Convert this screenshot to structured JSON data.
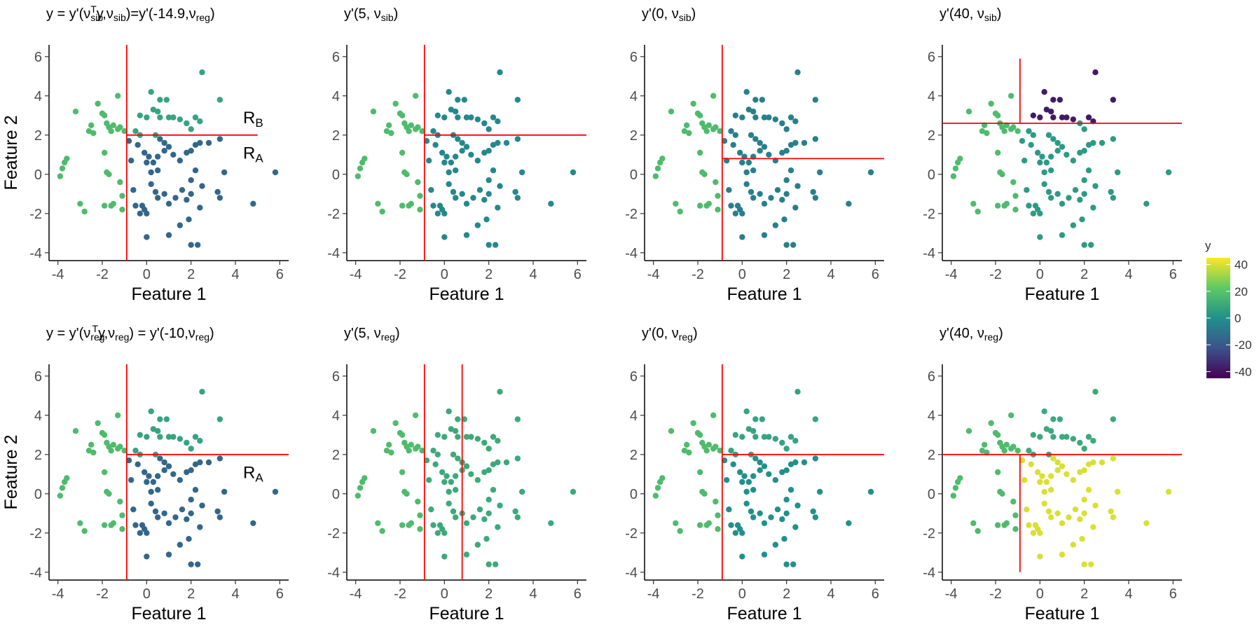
{
  "chart_data": {
    "type": "scatter",
    "xlabel": "Feature 1",
    "ylabel": "Feature 2",
    "xlim": [
      -4.4,
      6.4
    ],
    "ylim": [
      -4.4,
      6.6
    ],
    "xticks": [
      "-4",
      "-2",
      "0",
      "2",
      "4",
      "6"
    ],
    "yticks": [
      "-4",
      "-2",
      "0",
      "2",
      "4",
      "6"
    ],
    "points": [
      [
        -3.9,
        -0.1
      ],
      [
        -3.8,
        0.3
      ],
      [
        -3.7,
        0.6
      ],
      [
        -3.6,
        0.8
      ],
      [
        -3.2,
        3.2
      ],
      [
        -3.0,
        -1.5
      ],
      [
        -2.8,
        -1.9
      ],
      [
        -2.6,
        2.2
      ],
      [
        -2.5,
        2.5
      ],
      [
        -2.4,
        2.1
      ],
      [
        -2.2,
        3.6
      ],
      [
        -2.0,
        3.1
      ],
      [
        -1.9,
        3.0
      ],
      [
        -1.8,
        2.6
      ],
      [
        -1.7,
        2.4
      ],
      [
        -1.6,
        2.2
      ],
      [
        -1.9,
        1.1
      ],
      [
        -1.8,
        0.1
      ],
      [
        -1.7,
        0.0
      ],
      [
        -1.6,
        -1.6
      ],
      [
        -1.5,
        -1.5
      ],
      [
        -1.9,
        -1.6
      ],
      [
        -1.2,
        -0.4
      ],
      [
        -1.1,
        -1.1
      ],
      [
        -1.1,
        -1.8
      ],
      [
        -1.3,
        4.0
      ],
      [
        -1.5,
        2.5
      ],
      [
        -1.3,
        2.3
      ],
      [
        -1.0,
        2.2
      ],
      [
        -1.2,
        2.4
      ],
      [
        -0.8,
        1.7
      ],
      [
        -0.7,
        0.7
      ],
      [
        -0.6,
        -0.8
      ],
      [
        -0.5,
        2.2
      ],
      [
        -0.4,
        1.5
      ],
      [
        -0.3,
        2.0
      ],
      [
        -0.1,
        1.1
      ],
      [
        0.0,
        0.6
      ],
      [
        0.1,
        0.9
      ],
      [
        0.2,
        0.1
      ],
      [
        -0.3,
        3.0
      ],
      [
        0.0,
        2.9
      ],
      [
        0.3,
        3.3
      ],
      [
        0.5,
        3.2
      ],
      [
        0.2,
        4.2
      ],
      [
        0.6,
        3.8
      ],
      [
        0.9,
        3.8
      ],
      [
        0.6,
        2.9
      ],
      [
        1.0,
        2.9
      ],
      [
        1.2,
        2.9
      ],
      [
        1.5,
        2.8
      ],
      [
        1.8,
        2.6
      ],
      [
        2.0,
        2.3
      ],
      [
        2.2,
        2.9
      ],
      [
        2.4,
        2.7
      ],
      [
        2.5,
        5.2
      ],
      [
        3.3,
        3.8
      ],
      [
        0.4,
        2.0
      ],
      [
        0.6,
        1.8
      ],
      [
        0.8,
        1.6
      ],
      [
        1.0,
        1.4
      ],
      [
        1.2,
        1.0
      ],
      [
        0.8,
        1.2
      ],
      [
        0.5,
        0.9
      ],
      [
        0.3,
        0.6
      ],
      [
        0.5,
        0.2
      ],
      [
        0.2,
        -0.5
      ],
      [
        0.4,
        -0.9
      ],
      [
        -0.2,
        -1.6
      ],
      [
        -0.5,
        -1.6
      ],
      [
        -0.1,
        -1.8
      ],
      [
        0.0,
        -2.0
      ],
      [
        -0.3,
        -2.0
      ],
      [
        0.5,
        -1.2
      ],
      [
        0.8,
        -1.0
      ],
      [
        1.0,
        -1.5
      ],
      [
        1.3,
        -1.2
      ],
      [
        1.6,
        -0.8
      ],
      [
        1.8,
        -1.3
      ],
      [
        2.0,
        -0.3
      ],
      [
        2.2,
        0.2
      ],
      [
        1.5,
        0.7
      ],
      [
        1.8,
        1.1
      ],
      [
        2.0,
        1.2
      ],
      [
        2.2,
        1.5
      ],
      [
        2.4,
        1.6
      ],
      [
        2.8,
        1.6
      ],
      [
        3.3,
        1.8
      ],
      [
        2.5,
        -0.6
      ],
      [
        2.0,
        -1.0
      ],
      [
        2.4,
        -1.7
      ],
      [
        1.9,
        -2.3
      ],
      [
        1.5,
        -2.6
      ],
      [
        1.0,
        -3.1
      ],
      [
        0.0,
        -3.2
      ],
      [
        2.0,
        -3.6
      ],
      [
        2.3,
        -3.6
      ],
      [
        3.2,
        -0.9
      ],
      [
        3.3,
        -1.2
      ],
      [
        3.5,
        0.1
      ],
      [
        4.8,
        -1.5
      ],
      [
        5.8,
        0.1
      ]
    ],
    "panels": [
      {
        "title": "y = y'(ν_sib^T y, ν_sib) = y'(-14.9, ν_reg)",
        "title_parts": {
          "main": "y = y'(ν",
          "sub1": "sib",
          "sup1": "T",
          "mid": "y,ν",
          "sub2": "sib",
          "mid2": ")=y'(-14.9,ν",
          "sub3": "reg",
          "end": ")"
        },
        "region_labels": [
          {
            "text": "R",
            "sub": "B",
            "x": 4.8,
            "y": 2.6
          },
          {
            "text": "R",
            "sub": "A",
            "x": 4.8,
            "y": 0.8
          }
        ],
        "splits": [
          {
            "orient": "v",
            "at": -0.9,
            "from": -4.4,
            "to": 6.6
          },
          {
            "orient": "h",
            "at": 2.0,
            "from": -0.9,
            "to": 5.0
          }
        ],
        "rule": "reg-sib",
        "values": {
          "left": 17,
          "a": -15,
          "b": 8
        }
      },
      {
        "title": "y'(5, ν_sib)",
        "title_parts": {
          "main": "y'(5, ν",
          "sub1": "sib",
          "end": ")"
        },
        "splits": [
          {
            "orient": "v",
            "at": -0.9,
            "from": -4.4,
            "to": 6.6
          },
          {
            "orient": "h",
            "at": 2.0,
            "from": -0.9,
            "to": 6.4
          }
        ],
        "rule": "left-else",
        "values": {
          "left": 17,
          "a": -3,
          "b": -3
        }
      },
      {
        "title": "y'(0, ν_sib)",
        "title_parts": {
          "main": "y'(0, ν",
          "sub1": "sib",
          "end": ")"
        },
        "splits": [
          {
            "orient": "v",
            "at": -0.9,
            "from": -4.4,
            "to": 6.6
          },
          {
            "orient": "h",
            "at": 0.8,
            "from": -0.9,
            "to": 6.4
          }
        ],
        "rule": "left-else",
        "values": {
          "left": 17,
          "a": -6,
          "b": -6
        }
      },
      {
        "title": "y'(40, ν_sib)",
        "title_parts": {
          "main": "y'(40, ν",
          "sub1": "sib",
          "end": ")"
        },
        "splits": [
          {
            "orient": "h",
            "at": 2.6,
            "from": -4.4,
            "to": 6.4
          },
          {
            "orient": "v",
            "at": -0.9,
            "from": 2.6,
            "to": 5.9
          }
        ],
        "rule": "sib40",
        "values": {
          "left": 17,
          "a": 4,
          "b": -38
        }
      },
      {
        "title": "y = y'(ν_reg^T y, ν_reg) = y'(-10, ν_reg)",
        "title_parts": {
          "main": "y = y'(ν",
          "sub1": "reg",
          "sup1": "T",
          "mid": "y,ν",
          "sub2": "reg",
          "mid2": ") = y'(-10,ν",
          "sub3": "reg",
          "end": ")"
        },
        "region_labels": [
          {
            "text": "R",
            "sub": "A",
            "x": 4.8,
            "y": 0.8
          }
        ],
        "splits": [
          {
            "orient": "v",
            "at": -0.9,
            "from": -4.4,
            "to": 6.6
          },
          {
            "orient": "h",
            "at": 2.0,
            "from": -0.9,
            "to": 6.4
          }
        ],
        "rule": "reg-sib",
        "values": {
          "left": 17,
          "a": -15,
          "b": 8
        }
      },
      {
        "title": "y'(5, ν_reg)",
        "title_parts": {
          "main": "y'(5, ν",
          "sub1": "reg",
          "end": ")"
        },
        "splits": [
          {
            "orient": "v",
            "at": -0.9,
            "from": -4.4,
            "to": 6.6
          },
          {
            "orient": "v",
            "at": 0.8,
            "from": -4.4,
            "to": 6.6
          }
        ],
        "rule": "left-else",
        "values": {
          "left": 17,
          "a": 10,
          "b": 10
        }
      },
      {
        "title": "y'(0, ν_reg)",
        "title_parts": {
          "main": "y'(0, ν",
          "sub1": "reg",
          "end": ")"
        },
        "splits": [
          {
            "orient": "v",
            "at": -0.9,
            "from": -4.4,
            "to": 6.6
          },
          {
            "orient": "h",
            "at": 2.0,
            "from": -0.9,
            "to": 6.4
          }
        ],
        "rule": "reg-sib",
        "values": {
          "left": 17,
          "a": 0,
          "b": 8
        }
      },
      {
        "title": "y'(40, ν_reg)",
        "title_parts": {
          "main": "y'(40, ν",
          "sub1": "reg",
          "end": ")"
        },
        "splits": [
          {
            "orient": "h",
            "at": 2.0,
            "from": -4.4,
            "to": 6.4
          },
          {
            "orient": "v",
            "at": -0.9,
            "from": -4.0,
            "to": 2.0
          }
        ],
        "rule": "reg40",
        "values": {
          "left": 17,
          "a": 40,
          "b": 10
        }
      }
    ],
    "legend": {
      "title": "y",
      "min": -45,
      "max": 45,
      "ticks": [
        40,
        20,
        0,
        -20,
        -40
      ],
      "tick_labels": [
        "40",
        "20",
        "0",
        "-20",
        "-40"
      ],
      "palette": [
        "#440154",
        "#3b528b",
        "#21908c",
        "#5dc963",
        "#fde725"
      ]
    },
    "split_color": "#ff0000"
  }
}
